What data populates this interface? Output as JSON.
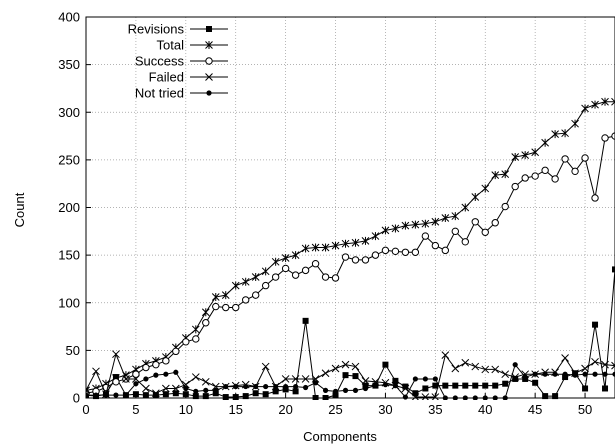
{
  "chart_data": {
    "type": "line",
    "xlabel": "Components",
    "ylabel": "Count",
    "xlim": [
      0,
      53
    ],
    "ylim": [
      0,
      400
    ],
    "xticks": [
      0,
      5,
      10,
      15,
      20,
      25,
      30,
      35,
      40,
      45,
      50
    ],
    "yticks": [
      0,
      50,
      100,
      150,
      200,
      250,
      300,
      350,
      400
    ],
    "grid": true,
    "legend_position": "top-left",
    "x": [
      0,
      1,
      2,
      3,
      4,
      5,
      6,
      7,
      8,
      9,
      10,
      11,
      12,
      13,
      14,
      15,
      16,
      17,
      18,
      19,
      20,
      21,
      22,
      23,
      24,
      25,
      26,
      27,
      28,
      29,
      30,
      31,
      32,
      33,
      34,
      35,
      36,
      37,
      38,
      39,
      40,
      41,
      42,
      43,
      44,
      45,
      46,
      47,
      48,
      49,
      50,
      51,
      52,
      53
    ],
    "series": [
      {
        "name": "Revisions",
        "marker": "square",
        "values": [
          3,
          2,
          4,
          22,
          3,
          4,
          3,
          3,
          4,
          5,
          4,
          2,
          2,
          5,
          1,
          1,
          2,
          5,
          4,
          7,
          9,
          7,
          81,
          0,
          0,
          3,
          24,
          23,
          13,
          13,
          35,
          18,
          12,
          5,
          10,
          13,
          13,
          13,
          13,
          13,
          13,
          13,
          15,
          20,
          20,
          16,
          2,
          2,
          22,
          26,
          10,
          77,
          10,
          135
        ]
      },
      {
        "name": "Total",
        "marker": "star",
        "values": [
          8,
          10,
          15,
          21,
          24,
          30,
          36,
          39,
          43,
          53,
          63,
          72,
          90,
          106,
          108,
          118,
          122,
          127,
          133,
          143,
          147,
          150,
          157,
          158,
          158,
          160,
          162,
          163,
          165,
          170,
          176,
          178,
          181,
          182,
          183,
          185,
          189,
          191,
          200,
          211,
          220,
          234,
          235,
          253,
          255,
          258,
          268,
          277,
          278,
          288,
          304,
          308,
          311,
          311
        ]
      },
      {
        "name": "Success",
        "marker": "circle-open",
        "values": [
          5,
          7,
          11,
          17,
          20,
          25,
          32,
          35,
          39,
          49,
          59,
          62,
          79,
          96,
          95,
          95,
          103,
          108,
          118,
          127,
          136,
          129,
          134,
          141,
          127,
          126,
          148,
          145,
          145,
          150,
          155,
          154,
          153,
          153,
          170,
          160,
          155,
          175,
          164,
          185,
          174,
          184,
          201,
          222,
          231,
          233,
          239,
          230,
          251,
          238,
          252,
          210,
          273,
          275
        ]
      },
      {
        "name": "Failed",
        "marker": "x",
        "values": [
          8,
          28,
          4,
          46,
          20,
          20,
          10,
          5,
          10,
          10,
          14,
          22,
          17,
          12,
          12,
          13,
          14,
          12,
          33,
          12,
          20,
          20,
          20,
          20,
          26,
          31,
          35,
          33,
          18,
          17,
          16,
          13,
          10,
          1,
          1,
          1,
          45,
          31,
          37,
          33,
          30,
          30,
          25,
          22,
          25,
          25,
          27,
          27,
          42,
          26,
          31,
          38,
          35,
          34
        ]
      },
      {
        "name": "Not tried",
        "marker": "dot",
        "values": [
          3,
          3,
          3,
          3,
          3,
          15,
          20,
          24,
          25,
          27,
          10,
          7,
          8,
          8,
          12,
          12,
          12,
          12,
          12,
          12,
          12,
          12,
          11,
          16,
          8,
          7,
          8,
          8,
          10,
          13,
          14,
          13,
          1,
          20,
          20,
          20,
          0,
          0,
          0,
          0,
          0,
          0,
          0,
          35,
          22,
          25,
          25,
          25,
          25,
          24,
          25,
          25,
          25,
          25
        ]
      }
    ]
  }
}
